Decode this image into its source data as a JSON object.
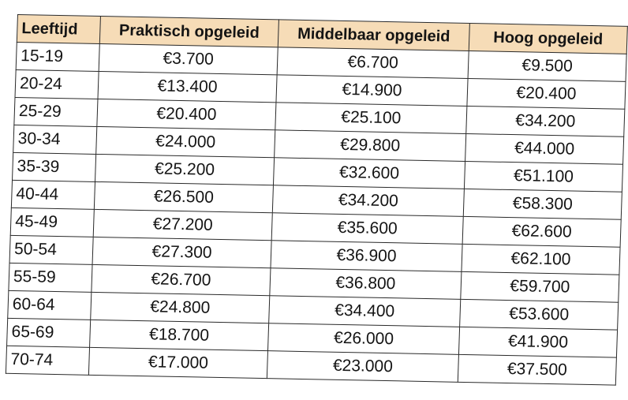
{
  "table": {
    "headers": [
      "Leeftijd",
      "Praktisch opgeleid",
      "Middelbaar opgeleid",
      "Hoog opgeleid"
    ],
    "rows": [
      [
        "15-19",
        "€3.700",
        "€6.700",
        "€9.500"
      ],
      [
        "20-24",
        "€13.400",
        "€14.900",
        "€20.400"
      ],
      [
        "25-29",
        "€20.400",
        "€25.100",
        "€34.200"
      ],
      [
        "30-34",
        "€24.000",
        "€29.800",
        "€44.000"
      ],
      [
        "35-39",
        "€25.200",
        "€32.600",
        "€51.100"
      ],
      [
        "40-44",
        "€26.500",
        "€34.200",
        "€58.300"
      ],
      [
        "45-49",
        "€27.200",
        "€35.600",
        "€62.600"
      ],
      [
        "50-54",
        "€27.300",
        "€36.900",
        "€62.100"
      ],
      [
        "55-59",
        "€26.700",
        "€36.800",
        "€59.700"
      ],
      [
        "60-64",
        "€24.800",
        "€34.400",
        "€53.600"
      ],
      [
        "65-69",
        "€18.700",
        "€26.000",
        "€41.900"
      ],
      [
        "70-74",
        "€17.000",
        "€23.000",
        "€37.500"
      ]
    ]
  },
  "colors": {
    "header_background": "#f6dcb7",
    "border": "#2a2a2a",
    "text": "#141414"
  }
}
